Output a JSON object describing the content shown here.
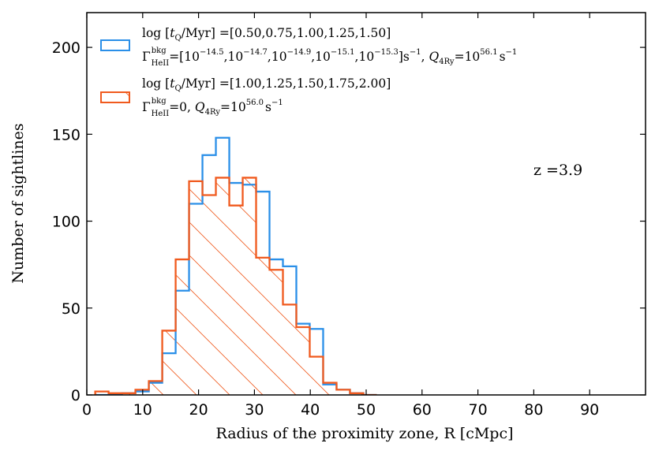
{
  "chart_data": {
    "type": "histogram",
    "xlabel": "Radius of the proximity zone, R [cMpc]",
    "ylabel": "Number of sightlines",
    "xlim": [
      0,
      100
    ],
    "ylim": [
      0,
      220
    ],
    "xticks": [
      0,
      10,
      20,
      30,
      40,
      50,
      60,
      70,
      80,
      90
    ],
    "yticks": [
      0,
      50,
      100,
      150,
      200
    ],
    "annotation": "z =3.9",
    "bin_edges": [
      1.5,
      3.9,
      6.3,
      8.7,
      11.1,
      13.5,
      15.9,
      18.3,
      20.7,
      23.1,
      25.5,
      27.9,
      30.3,
      32.7,
      35.1,
      37.5,
      39.9,
      42.3,
      44.7,
      47.1,
      49.5,
      51.9
    ],
    "series": [
      {
        "name": "blue",
        "color": "#2a8fe8",
        "hatch": false,
        "values": [
          0,
          0,
          1,
          2,
          7,
          24,
          60,
          110,
          138,
          148,
          122,
          121,
          117,
          78,
          74,
          41,
          38,
          6,
          3,
          1,
          0
        ],
        "legend": {
          "line1_prefix": "log",
          "line1_var": "t",
          "line1_sub": "Q",
          "line1_rest": "/Myr",
          "line1_values": "=[0.50,0.75,1.00,1.25,1.50]",
          "line2_gamma": "Γ",
          "line2_sup": "bkg",
          "line2_sub": "HeII",
          "line2_eq": "=[10",
          "line2_exp1": "−14.5",
          "line2_exp2": "−14.7",
          "line2_exp3": "−14.9",
          "line2_exp4": "−15.1",
          "line2_exp5": "−15.3",
          "line2_unit": "]s",
          "line2_unit_exp": "−1",
          "line2_q": "Q",
          "line2_q_sub": "4Ry",
          "line2_q_eq": "=10",
          "line2_q_exp": "56.1",
          "line2_q_unit": "s",
          "line2_q_unit_exp": "−1"
        }
      },
      {
        "name": "orange",
        "color": "#f05a1e",
        "hatch": true,
        "values": [
          2,
          1,
          1,
          3,
          8,
          37,
          78,
          123,
          115,
          125,
          109,
          125,
          79,
          72,
          52,
          39,
          22,
          7,
          3,
          1,
          0
        ],
        "legend": {
          "line1_prefix": "log",
          "line1_var": "t",
          "line1_sub": "Q",
          "line1_rest": "/Myr",
          "line1_values": "=[1.00,1.25,1.50,1.75,2.00]",
          "line2_gamma": "Γ",
          "line2_sup": "bkg",
          "line2_sub": "HeII",
          "line2_eq": "=0,",
          "line2_q": "Q",
          "line2_q_sub": "4Ry",
          "line2_q_eq": "=10",
          "line2_q_exp": "56.0",
          "line2_q_unit": "s",
          "line2_q_unit_exp": "−1"
        }
      }
    ]
  }
}
